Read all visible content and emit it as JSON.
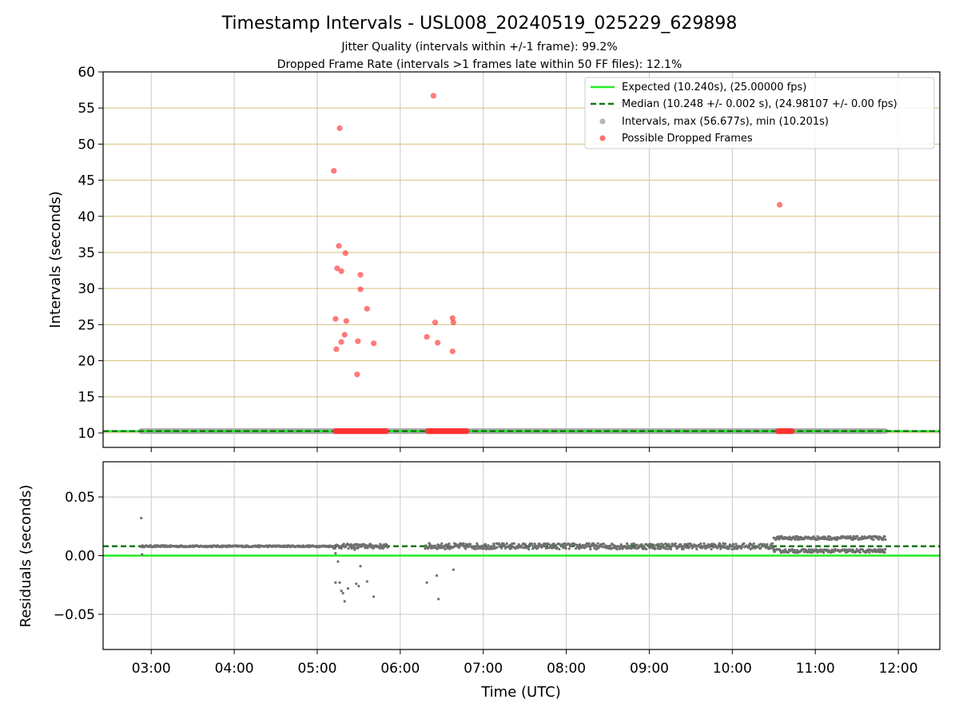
{
  "figure": {
    "title": "Timestamp Intervals - USL008_20240519_025229_629898",
    "subtitle_1": "Jitter Quality (intervals within +/-1 frame): 99.2%",
    "subtitle_2": "Dropped Frame Rate (intervals >1 frames late within 50 FF files): 12.1%"
  },
  "colors": {
    "expected": "#22ee22",
    "median": "#117711",
    "intervals": "#a9a9a9",
    "dropped": "#ff3333",
    "residual_points": "#707070",
    "hgrid_top": "#d4c080",
    "grid": "#c8c8c8"
  },
  "chart_data": [
    {
      "type": "scatter",
      "panel": "intervals",
      "ylabel": "Intervals (seconds)",
      "xlabel": "",
      "xlim_hours": [
        2.42,
        12.5
      ],
      "ylim": [
        8,
        60
      ],
      "yticks": [
        10,
        15,
        20,
        25,
        30,
        35,
        40,
        45,
        50,
        55,
        60
      ],
      "ytick_labels": [
        "10",
        "15",
        "20",
        "25",
        "30",
        "35",
        "40",
        "45",
        "50",
        "55",
        "60"
      ],
      "grid": true,
      "legend_placement": "upper-right",
      "legend": [
        "Expected (10.240s), (25.00000 fps)",
        "Median (10.248 +/- 0.002 s), (24.98107 +/- 0.00 fps)",
        "Intervals, max (56.677s), min (10.201s)",
        "Possible Dropped Frames"
      ],
      "expected_value": 10.24,
      "median_value": 10.248,
      "normal_intervals": {
        "x_start_hours": 2.88,
        "x_end_hours": 11.85,
        "value": 10.25
      },
      "dropped_band_segments_hours": [
        [
          5.22,
          5.83
        ],
        [
          6.33,
          6.8
        ],
        [
          10.55,
          10.72
        ]
      ],
      "dropped_band_value": 10.25,
      "dropped_outliers": [
        {
          "x": 5.2,
          "y": 46.3
        },
        {
          "x": 5.27,
          "y": 52.2
        },
        {
          "x": 5.26,
          "y": 35.9
        },
        {
          "x": 5.34,
          "y": 34.9
        },
        {
          "x": 5.24,
          "y": 32.8
        },
        {
          "x": 5.29,
          "y": 32.4
        },
        {
          "x": 5.52,
          "y": 31.9
        },
        {
          "x": 5.52,
          "y": 29.9
        },
        {
          "x": 5.6,
          "y": 27.2
        },
        {
          "x": 5.22,
          "y": 25.8
        },
        {
          "x": 5.35,
          "y": 25.5
        },
        {
          "x": 5.33,
          "y": 23.6
        },
        {
          "x": 5.29,
          "y": 22.6
        },
        {
          "x": 5.49,
          "y": 22.7
        },
        {
          "x": 5.68,
          "y": 22.4
        },
        {
          "x": 5.23,
          "y": 21.6
        },
        {
          "x": 5.48,
          "y": 18.1
        },
        {
          "x": 6.4,
          "y": 56.7
        },
        {
          "x": 6.32,
          "y": 23.3
        },
        {
          "x": 6.42,
          "y": 25.3
        },
        {
          "x": 6.45,
          "y": 22.5
        },
        {
          "x": 6.63,
          "y": 25.9
        },
        {
          "x": 6.64,
          "y": 25.3
        },
        {
          "x": 6.63,
          "y": 21.3
        },
        {
          "x": 10.57,
          "y": 41.6
        }
      ]
    },
    {
      "type": "scatter",
      "panel": "residuals",
      "ylabel": "Residuals (seconds)",
      "xlabel": "Time (UTC)",
      "xlim_hours": [
        2.42,
        12.5
      ],
      "ylim": [
        -0.08,
        0.08
      ],
      "yticks": [
        -0.05,
        0,
        0.05
      ],
      "ytick_labels": [
        "−0.05",
        "0.00",
        "0.05"
      ],
      "xticks_hours": [
        3,
        4,
        5,
        6,
        7,
        8,
        9,
        10,
        11,
        12
      ],
      "xtick_labels": [
        "03:00",
        "04:00",
        "05:00",
        "06:00",
        "07:00",
        "08:00",
        "09:00",
        "10:00",
        "11:00",
        "12:00"
      ],
      "grid": true,
      "expected_residual": 0,
      "median_residual": 0.008,
      "residual_bands": [
        {
          "x_start_hours": 2.88,
          "x_end_hours": 5.2,
          "center": 0.008,
          "spread": 0.0007
        },
        {
          "x_start_hours": 5.2,
          "x_end_hours": 5.85,
          "center": 0.008,
          "spread": 0.002
        },
        {
          "x_start_hours": 6.3,
          "x_end_hours": 10.5,
          "center": 0.008,
          "spread": 0.0025
        },
        {
          "x_start_hours": 10.5,
          "x_end_hours": 11.85,
          "center": 0.015,
          "spread": 0.0015
        },
        {
          "x_start_hours": 10.5,
          "x_end_hours": 11.85,
          "center": 0.004,
          "spread": 0.0015
        }
      ],
      "residual_outliers": [
        {
          "x": 2.88,
          "y": 0.032
        },
        {
          "x": 2.89,
          "y": 0.001
        },
        {
          "x": 5.22,
          "y": 0.002
        },
        {
          "x": 5.25,
          "y": -0.005
        },
        {
          "x": 5.22,
          "y": -0.023
        },
        {
          "x": 5.27,
          "y": -0.023
        },
        {
          "x": 5.29,
          "y": -0.03
        },
        {
          "x": 5.31,
          "y": -0.032
        },
        {
          "x": 5.33,
          "y": -0.039
        },
        {
          "x": 5.37,
          "y": -0.028
        },
        {
          "x": 5.47,
          "y": -0.024
        },
        {
          "x": 5.5,
          "y": -0.026
        },
        {
          "x": 5.52,
          "y": -0.009
        },
        {
          "x": 5.6,
          "y": -0.022
        },
        {
          "x": 5.68,
          "y": -0.035
        },
        {
          "x": 5.45,
          "y": 0.005
        },
        {
          "x": 6.32,
          "y": -0.023
        },
        {
          "x": 6.44,
          "y": -0.017
        },
        {
          "x": 6.46,
          "y": -0.037
        },
        {
          "x": 6.64,
          "y": -0.012
        }
      ]
    }
  ]
}
